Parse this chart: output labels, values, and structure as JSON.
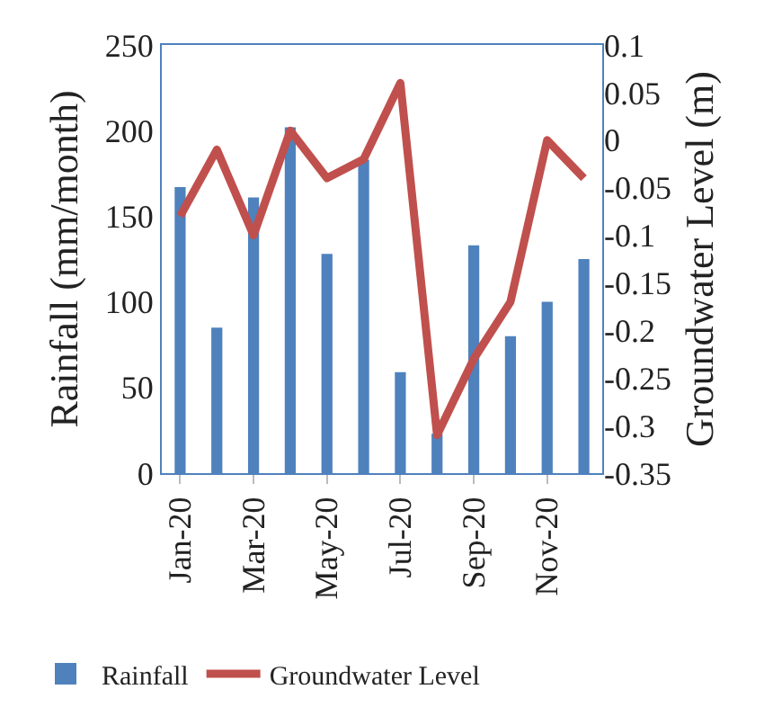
{
  "chart_data": {
    "type": "bar",
    "categories": [
      "Jan-20",
      null,
      "Mar-20",
      null,
      "May-20",
      null,
      "Jul-20",
      null,
      "Sep-20",
      null,
      "Nov-20",
      null
    ],
    "series": [
      {
        "name": "Rainfall",
        "color": "#4f81bd",
        "values": [
          167,
          85,
          161,
          202,
          128,
          183,
          59,
          23,
          133,
          80,
          100,
          125
        ]
      },
      {
        "name": "Groundwater Level",
        "type": "line",
        "axis": "y2",
        "color": "#c0504d",
        "marker": "none",
        "line_style": "solid",
        "values": [
          -0.08,
          -0.01,
          -0.1,
          0.01,
          -0.04,
          -0.02,
          0.06,
          -0.31,
          -0.23,
          -0.17,
          0.0,
          -0.04
        ]
      }
    ],
    "ylabel": "Rainfall (mm/month)",
    "y2label": "Groundwater Level (m)",
    "ylim": [
      0,
      250
    ],
    "yticks": [
      0,
      50,
      100,
      150,
      200,
      250
    ],
    "y2lim": [
      -0.35,
      0.1
    ],
    "y2ticks": [
      -0.35,
      -0.3,
      -0.25,
      -0.2,
      -0.15,
      -0.1,
      -0.05,
      0,
      0.05,
      0.1
    ],
    "grid": false,
    "legend": "bottom"
  }
}
